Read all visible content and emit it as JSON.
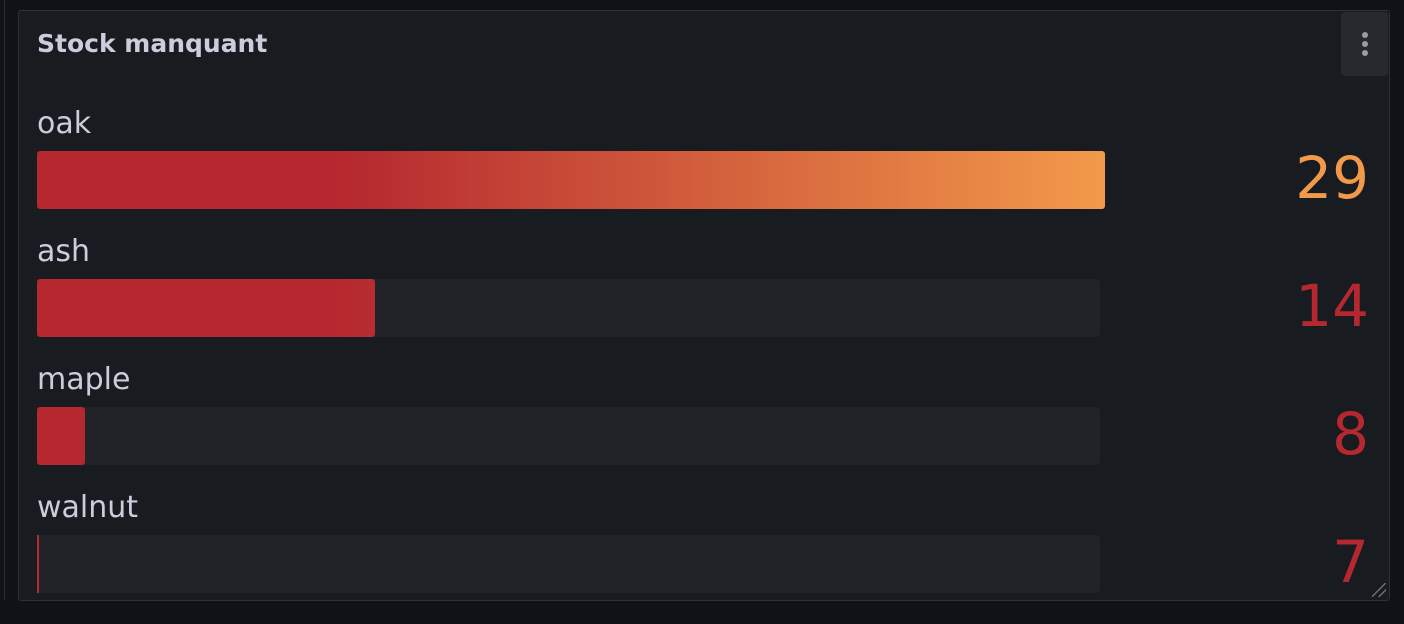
{
  "panel": {
    "title": "Stock manquant",
    "menu_icon": "kebab-menu-icon"
  },
  "colors": {
    "low": "#b5282f",
    "high": "#f2994a",
    "track": "#222328"
  },
  "chart_data": {
    "type": "bar",
    "orientation": "horizontal",
    "display_mode": "gradient",
    "categories": [
      "oak",
      "ash",
      "maple",
      "walnut"
    ],
    "values": [
      29,
      14,
      8,
      7
    ],
    "value_labels": [
      "29",
      "14",
      "8",
      "7"
    ],
    "xlim": [
      7,
      29
    ]
  }
}
